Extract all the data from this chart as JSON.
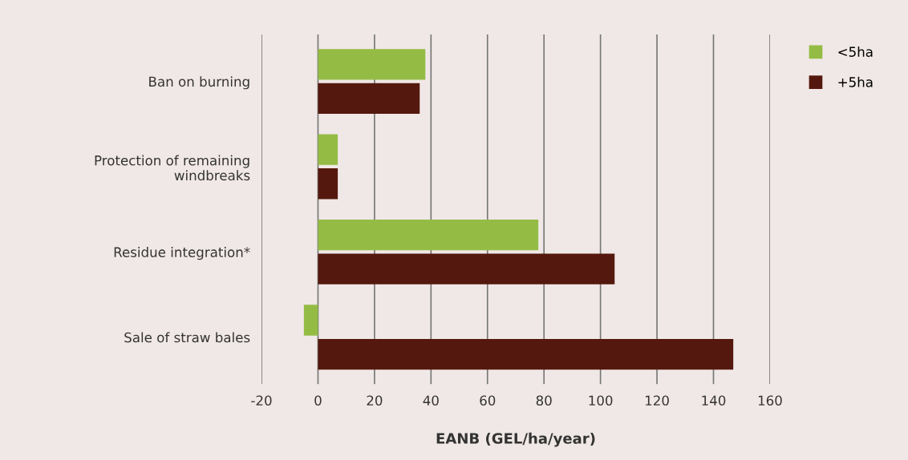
{
  "chart_data": {
    "type": "bar",
    "orientation": "horizontal",
    "xlabel": "EANB (GEL/ha/year)",
    "categories": [
      "Ban on burning",
      "Protection of remaining\nwindbreaks",
      "Residue integration*",
      "Sale of straw bales"
    ],
    "series": [
      {
        "name": "<5ha",
        "color": "#94bc45",
        "values": [
          38,
          7,
          78,
          -5
        ]
      },
      {
        "name": "+5ha",
        "color": "#55180e",
        "values": [
          36,
          7,
          105,
          147
        ]
      }
    ],
    "xlim": [
      -20,
      160
    ],
    "xticks": [
      -20,
      0,
      20,
      40,
      60,
      80,
      100,
      120,
      140,
      160
    ],
    "grid": "x",
    "legend": "top right"
  }
}
